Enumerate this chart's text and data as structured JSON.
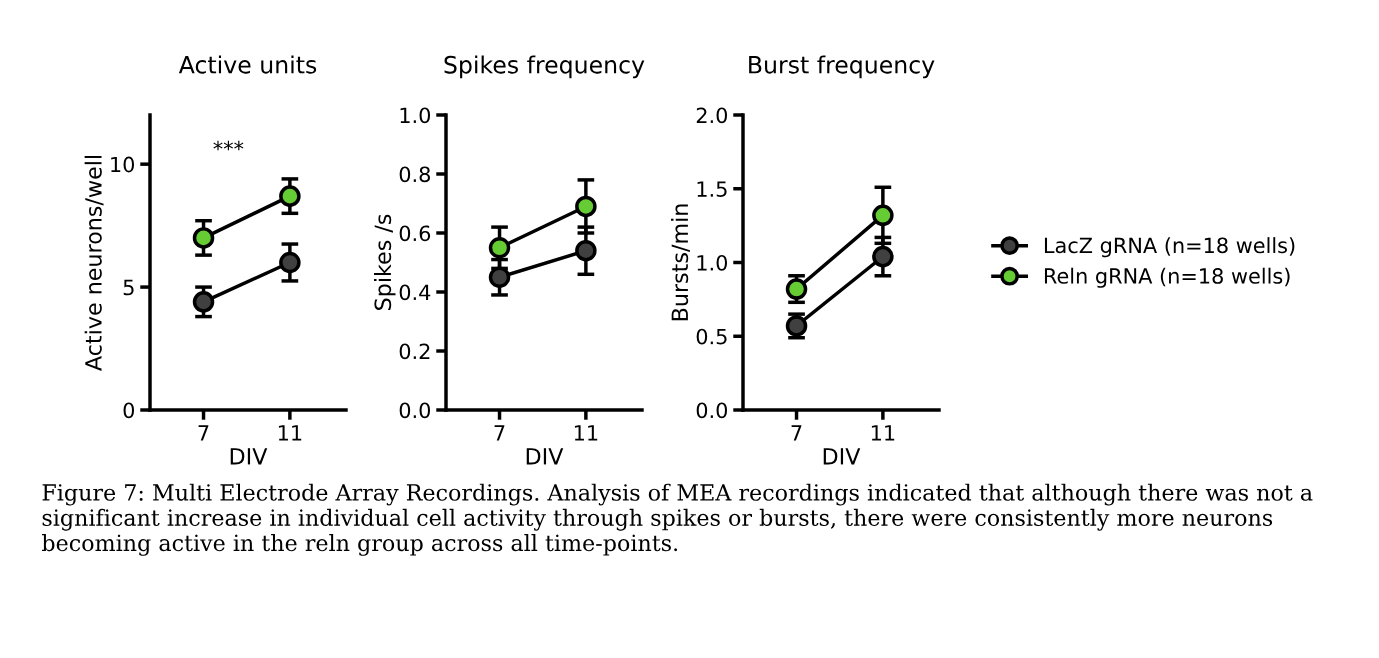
{
  "chart_data": [
    {
      "type": "line",
      "title": "Active units",
      "xlabel": "DIV",
      "ylabel": "Active neurons/well",
      "categories": [
        "7",
        "11"
      ],
      "ylim": [
        0,
        12
      ],
      "yticks": [
        0,
        5,
        10
      ],
      "marker": "circle",
      "line_style": "solid",
      "grid": false,
      "annotations": [
        "***"
      ],
      "series": [
        {
          "color": "#404040",
          "values": [
            4.4,
            6.0
          ],
          "errors": [
            0.6,
            0.75
          ]
        },
        {
          "color": "#66cc33",
          "values": [
            7.0,
            8.7
          ],
          "errors": [
            0.7,
            0.7
          ]
        }
      ]
    },
    {
      "type": "line",
      "title": "Spikes frequency",
      "xlabel": "DIV",
      "ylabel": "Spikes /s",
      "categories": [
        "7",
        "11"
      ],
      "ylim": [
        0,
        1.0
      ],
      "yticks": [
        {
          "value": 0,
          "label": "0.0"
        },
        0.2,
        0.4,
        0.6,
        0.8,
        {
          "value": 1,
          "label": "1.0"
        }
      ],
      "marker": "circle",
      "line_style": "solid",
      "grid": false,
      "series": [
        {
          "color": "#404040",
          "values": [
            0.45,
            0.54
          ],
          "errors": [
            0.06,
            0.08
          ]
        },
        {
          "color": "#66cc33",
          "values": [
            0.55,
            0.69
          ],
          "errors": [
            0.07,
            0.09
          ]
        }
      ]
    },
    {
      "type": "line",
      "title": "Burst frequency",
      "xlabel": "DIV",
      "ylabel": "Bursts/min",
      "categories": [
        "7",
        "11"
      ],
      "ylim": [
        0,
        2.0
      ],
      "yticks": [
        {
          "value": 0,
          "label": "0.0"
        },
        0.5,
        {
          "value": 1,
          "label": "1.0"
        },
        1.5,
        {
          "value": 2,
          "label": "2.0"
        }
      ],
      "marker": "circle",
      "line_style": "solid",
      "grid": false,
      "legend": "right",
      "annotations": [
        "Figure 7: Multi Electrode Array Recordings. Analysis of MEA recordings indicated that although there was not a significant increase in individual cell activity through spikes or bursts, there were consistently more neurons becoming active in the reln group across all time-points."
      ],
      "series": [
        {
          "name": "LacZ gRNA (n=18 wells)",
          "color": "#404040",
          "values": [
            0.57,
            1.04
          ],
          "errors": [
            0.08,
            0.13
          ]
        },
        {
          "name": "Reln gRNA (n=18 wells)",
          "color": "#66cc33",
          "values": [
            0.82,
            1.32
          ],
          "errors": [
            0.09,
            0.19
          ]
        }
      ]
    }
  ]
}
